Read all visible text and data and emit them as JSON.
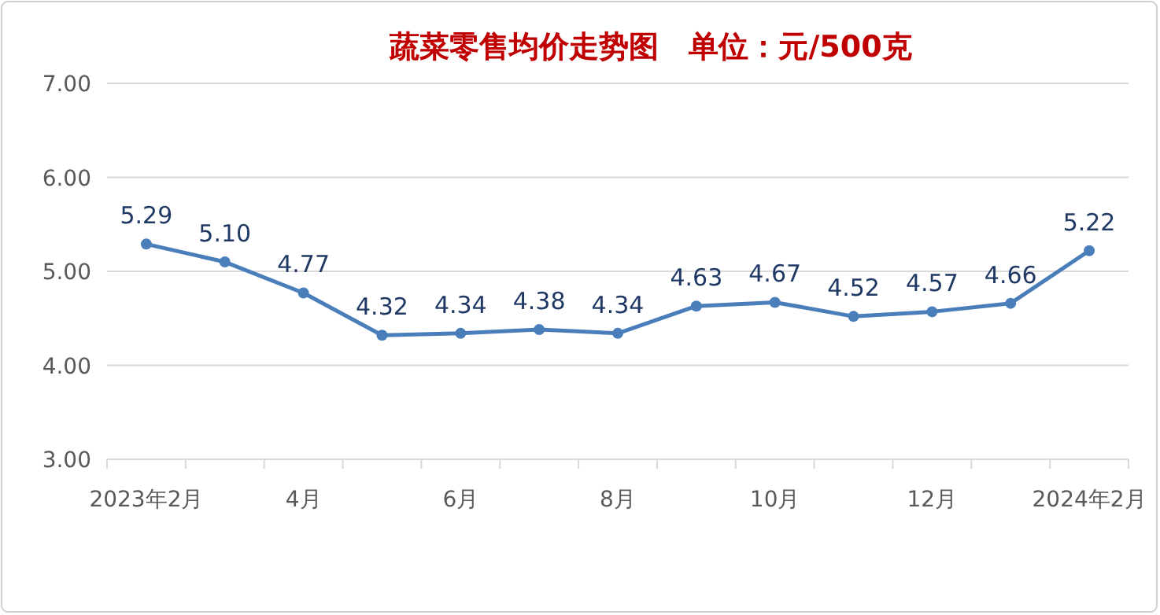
{
  "chart_data": {
    "type": "line",
    "title": "蔬菜零售均价走势图　单位：元/500克",
    "categories": [
      "2023年2月",
      null,
      "4月",
      null,
      "6月",
      null,
      "8月",
      null,
      "10月",
      null,
      "12月",
      null,
      "2024年2月"
    ],
    "series": [
      {
        "color": "#4a7ebb",
        "values": [
          5.29,
          5.1,
          4.77,
          4.32,
          4.34,
          4.38,
          4.34,
          4.63,
          4.67,
          4.52,
          4.57,
          4.66,
          5.22
        ],
        "value_labels": [
          "5.29",
          "5.10",
          "4.77",
          "4.32",
          "4.34",
          "4.38",
          "4.34",
          "4.63",
          "4.67",
          "4.52",
          "4.57",
          "4.66",
          "5.22"
        ]
      }
    ],
    "ylim": [
      3,
      7
    ],
    "yticks": [
      {
        "value": 3,
        "label": "3.00"
      },
      {
        "value": 4,
        "label": "4.00"
      },
      {
        "value": 5,
        "label": "5.00"
      },
      {
        "value": 6,
        "label": "6.00"
      },
      {
        "value": 7,
        "label": "7.00"
      }
    ],
    "grid": "y",
    "marker": "circle",
    "line_style": "solid"
  }
}
